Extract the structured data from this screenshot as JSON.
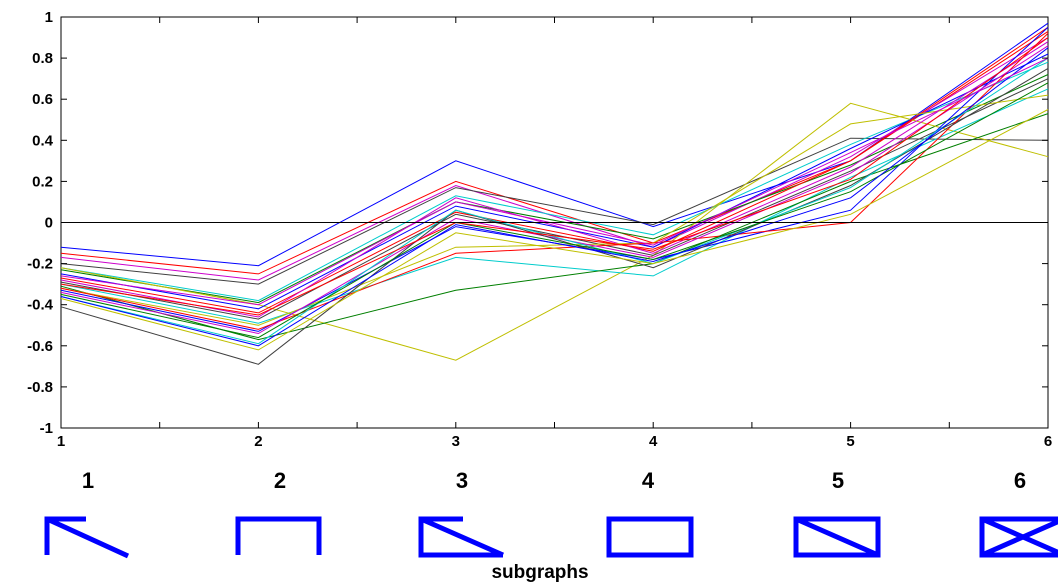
{
  "chart_data": {
    "type": "line",
    "title": "",
    "xlabel": "subgraphs",
    "ylabel": "",
    "x": [
      1,
      2,
      3,
      4,
      5,
      6
    ],
    "xlim": [
      1,
      6
    ],
    "ylim": [
      -1,
      1
    ],
    "xticks": [
      "1",
      "2",
      "3",
      "4",
      "5",
      "6"
    ],
    "yticks": [
      "1",
      "0.8",
      "0.6",
      "0.4",
      "0.2",
      "0",
      "-0.2",
      "-0.4",
      "-0.6",
      "-0.8",
      "-1"
    ],
    "grid": false,
    "legend": "none",
    "reference_line": {
      "y": 0,
      "color": "#000000"
    },
    "series": [
      {
        "color": "#0000ff",
        "values": [
          -0.12,
          -0.21,
          0.3,
          -0.02,
          0.3,
          0.97
        ]
      },
      {
        "color": "#ff0000",
        "values": [
          -0.15,
          -0.25,
          0.2,
          -0.1,
          0.3,
          0.93
        ]
      },
      {
        "color": "#cc00cc",
        "values": [
          -0.17,
          -0.28,
          0.18,
          -0.12,
          0.32,
          0.9
        ]
      },
      {
        "color": "#404040",
        "values": [
          -0.2,
          -0.3,
          0.17,
          -0.01,
          0.41,
          0.4
        ]
      },
      {
        "color": "#00cccc",
        "values": [
          -0.22,
          -0.38,
          0.13,
          -0.06,
          0.38,
          0.78
        ]
      },
      {
        "color": "#007f00",
        "values": [
          -0.23,
          -0.39,
          0.1,
          -0.08,
          0.28,
          0.72
        ]
      },
      {
        "color": "#bfbf00",
        "values": [
          -0.22,
          -0.4,
          -0.67,
          -0.16,
          0.58,
          0.32
        ]
      },
      {
        "color": "#0000ff",
        "values": [
          -0.25,
          -0.42,
          0.08,
          -0.12,
          0.36,
          0.82
        ]
      },
      {
        "color": "#ff0000",
        "values": [
          -0.27,
          -0.44,
          0.05,
          -0.14,
          0.3,
          0.95
        ]
      },
      {
        "color": "#cc00cc",
        "values": [
          -0.28,
          -0.46,
          0.12,
          -0.15,
          0.27,
          0.88
        ]
      },
      {
        "color": "#404040",
        "values": [
          -0.29,
          -0.47,
          0.04,
          -0.16,
          0.25,
          0.7
        ]
      },
      {
        "color": "#00cccc",
        "values": [
          -0.3,
          -0.49,
          -0.17,
          -0.26,
          0.22,
          0.65
        ]
      },
      {
        "color": "#007f00",
        "values": [
          -0.31,
          -0.57,
          -0.33,
          -0.2,
          0.2,
          0.53
        ]
      },
      {
        "color": "#bfbf00",
        "values": [
          -0.32,
          -0.5,
          -0.12,
          -0.1,
          0.48,
          0.62
        ]
      },
      {
        "color": "#0000ff",
        "values": [
          -0.33,
          -0.53,
          -0.02,
          -0.18,
          0.06,
          0.95
        ]
      },
      {
        "color": "#ff0000",
        "values": [
          -0.32,
          -0.52,
          -0.15,
          -0.1,
          0.0,
          0.92
        ]
      },
      {
        "color": "#cc00cc",
        "values": [
          -0.34,
          -0.54,
          0.02,
          -0.17,
          0.24,
          0.86
        ]
      },
      {
        "color": "#404040",
        "values": [
          -0.41,
          -0.69,
          0.06,
          -0.22,
          0.18,
          0.75
        ]
      },
      {
        "color": "#00cccc",
        "values": [
          -0.36,
          -0.59,
          0.06,
          -0.2,
          0.17,
          0.8
        ]
      },
      {
        "color": "#007f00",
        "values": [
          -0.35,
          -0.56,
          0.0,
          -0.18,
          0.15,
          0.68
        ]
      },
      {
        "color": "#bfbf00",
        "values": [
          -0.37,
          -0.62,
          -0.05,
          -0.2,
          0.04,
          0.55
        ]
      },
      {
        "color": "#0000ff",
        "values": [
          -0.36,
          -0.6,
          -0.01,
          -0.19,
          0.12,
          0.85
        ]
      },
      {
        "color": "#ff0000",
        "values": [
          -0.3,
          -0.45,
          0.0,
          -0.13,
          0.21,
          0.9
        ]
      },
      {
        "color": "#cc00cc",
        "values": [
          -0.26,
          -0.4,
          0.1,
          -0.11,
          0.34,
          0.8
        ]
      }
    ]
  },
  "subgraphs": {
    "numbers": [
      "1",
      "2",
      "3",
      "4",
      "5",
      "6"
    ],
    "icons": [
      "subgraph-1-icon",
      "subgraph-2-icon",
      "subgraph-3-icon",
      "subgraph-4-icon",
      "subgraph-5-icon",
      "subgraph-6-icon"
    ],
    "icon_color": "#0000ff"
  }
}
